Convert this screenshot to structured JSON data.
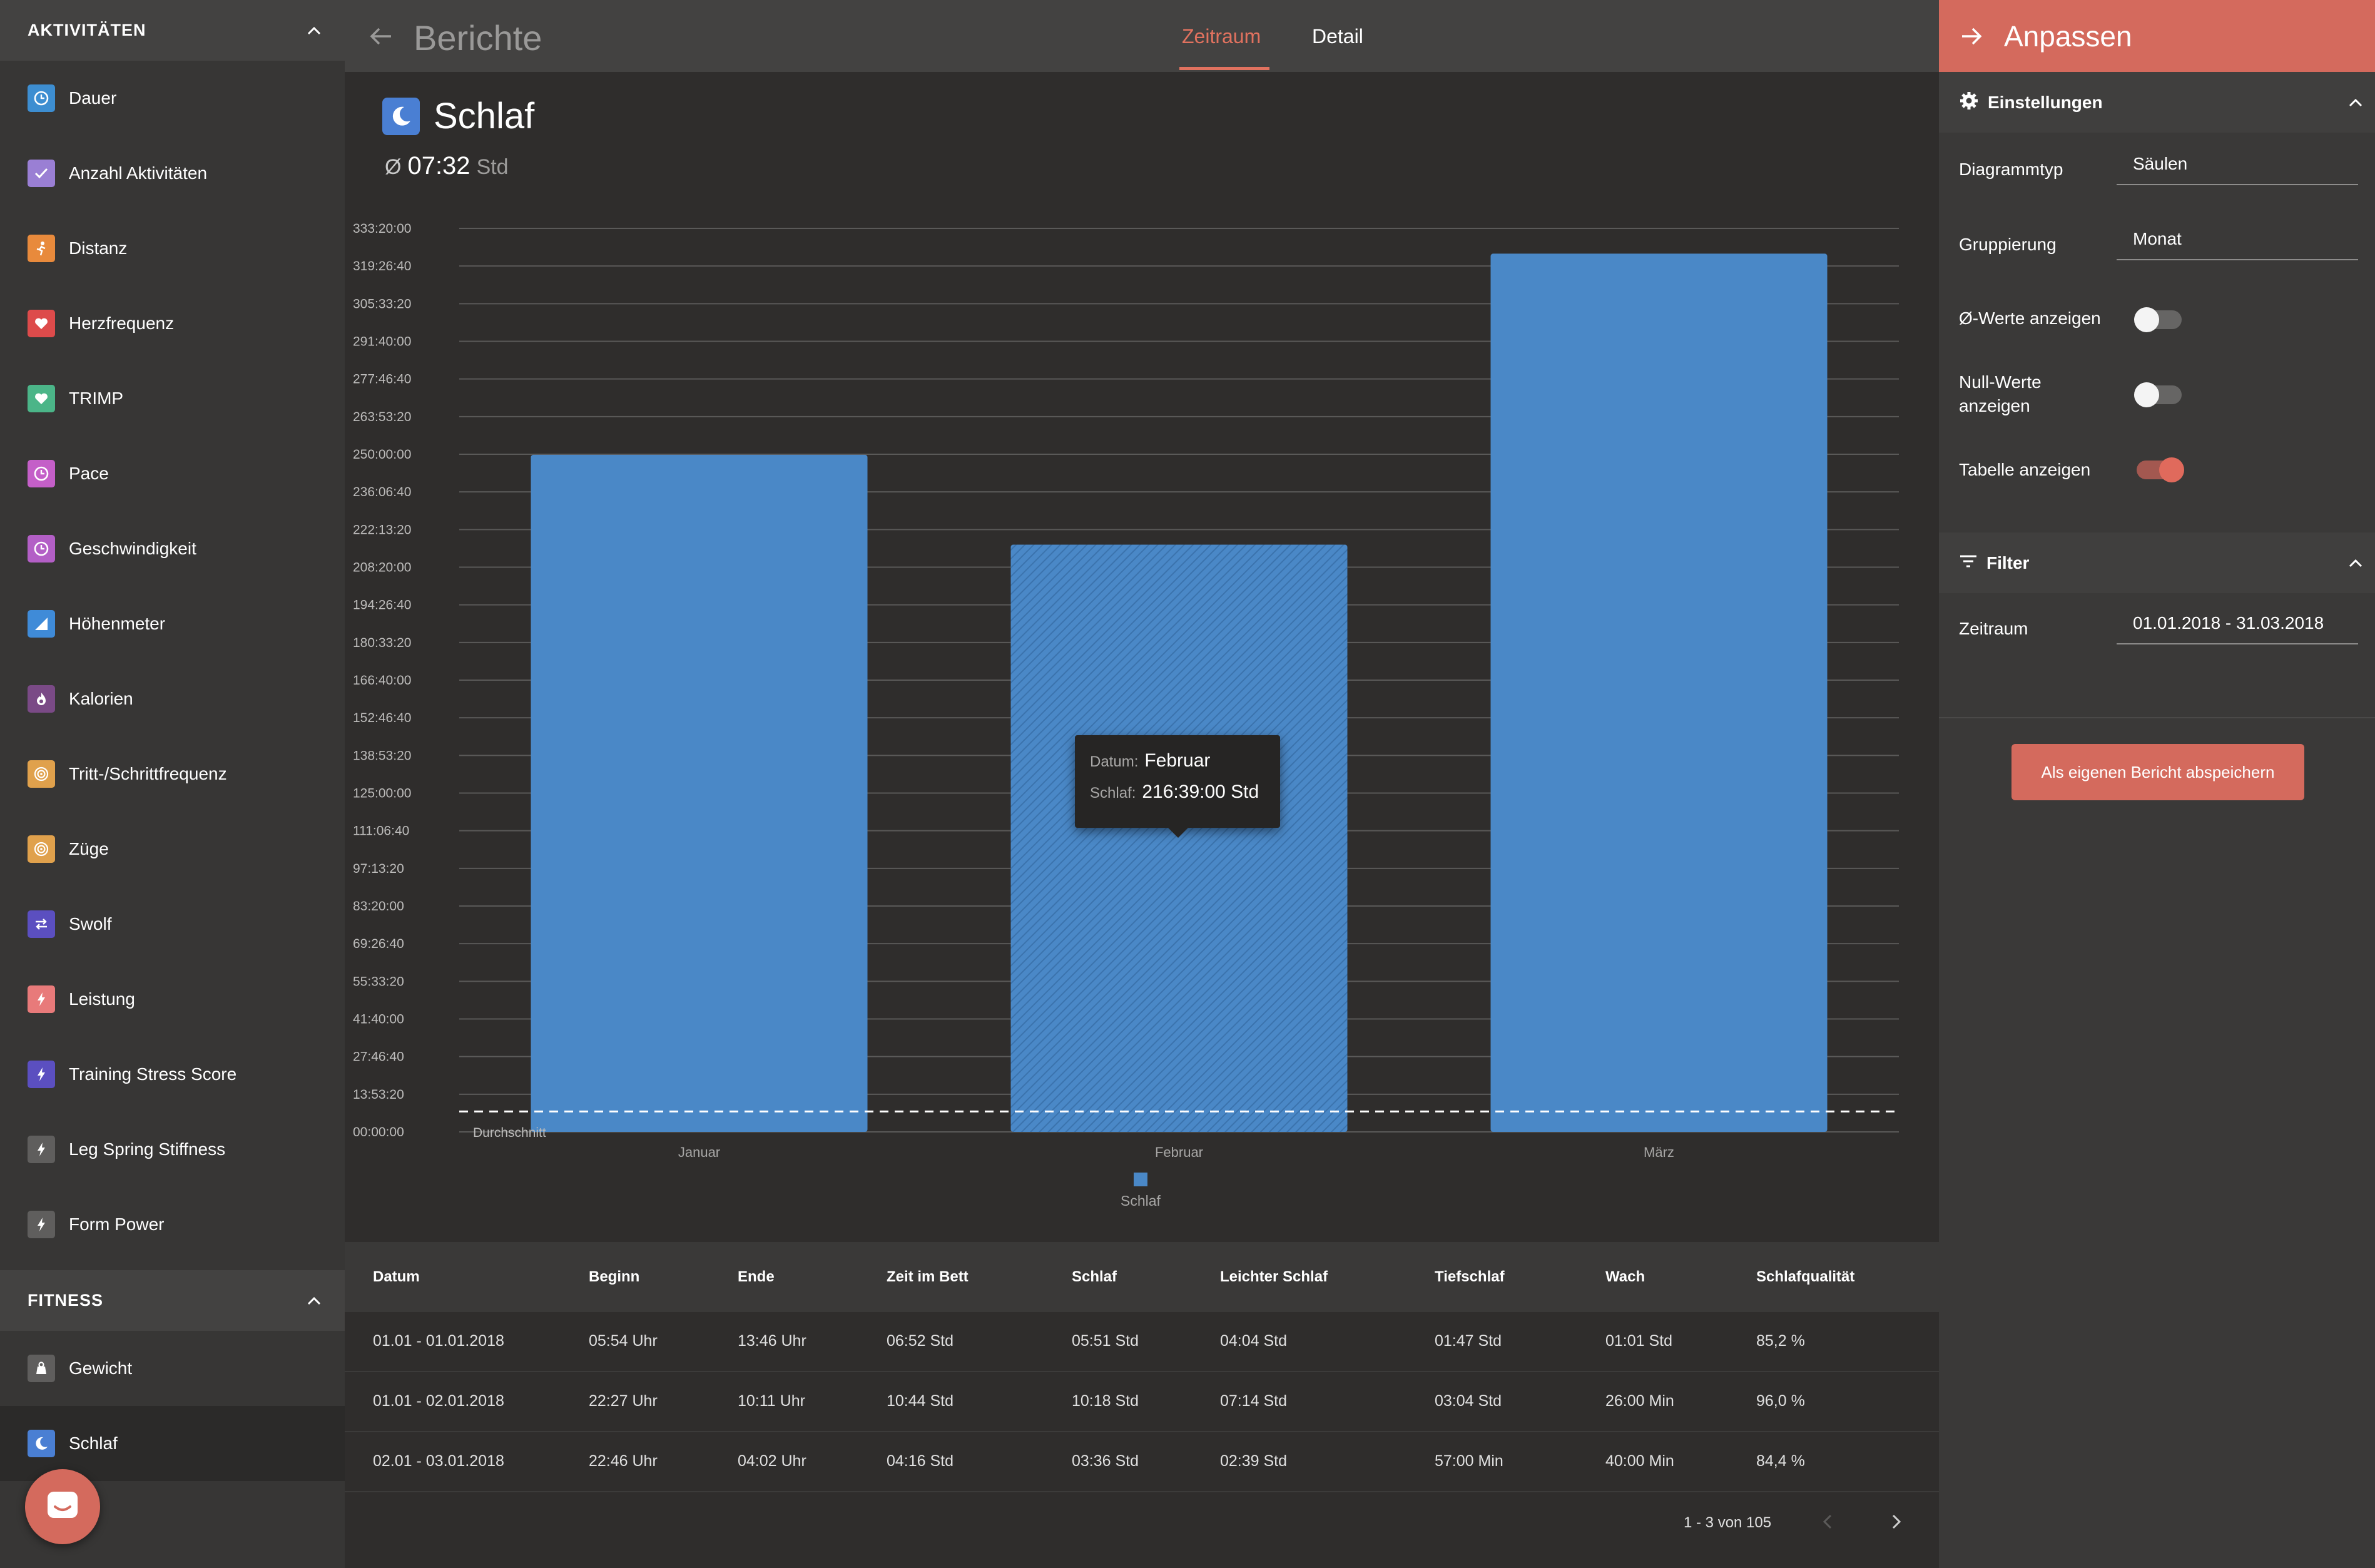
{
  "sidebar": {
    "activities_title": "AKTIVITÄTEN",
    "activities": [
      {
        "label": "Dauer",
        "icon": "clock-icon",
        "color": "#3d8ed1"
      },
      {
        "label": "Anzahl Aktivitäten",
        "icon": "checkmark-icon",
        "color": "#9a7fd4"
      },
      {
        "label": "Distanz",
        "icon": "runner-icon",
        "color": "#e88a3c"
      },
      {
        "label": "Herzfrequenz",
        "icon": "heart-icon",
        "color": "#dd4b4b"
      },
      {
        "label": "TRIMP",
        "icon": "heart-icon",
        "color": "#4bb588"
      },
      {
        "label": "Pace",
        "icon": "clock-icon",
        "color": "#c45fc8"
      },
      {
        "label": "Geschwindigkeit",
        "icon": "clock-icon",
        "color": "#b35fc6"
      },
      {
        "label": "Höhenmeter",
        "icon": "elevation-icon",
        "color": "#3f8bd8"
      },
      {
        "label": "Kalorien",
        "icon": "flame-icon",
        "color": "#7a4a86"
      },
      {
        "label": "Tritt-/Schrittfrequenz",
        "icon": "cadence-icon",
        "color": "#e0a14c"
      },
      {
        "label": "Züge",
        "icon": "cadence-icon",
        "color": "#e0a14c"
      },
      {
        "label": "Swolf",
        "icon": "swap-arrows-icon",
        "color": "#5b4fc0"
      },
      {
        "label": "Leistung",
        "icon": "lightning-icon",
        "color": "#e87a7a"
      },
      {
        "label": "Training Stress Score",
        "icon": "lightning-icon",
        "color": "#5b4fc0"
      },
      {
        "label": "Leg Spring Stiffness",
        "icon": "lightning-icon",
        "color": "#5f5e5d"
      },
      {
        "label": "Form Power",
        "icon": "lightning-icon",
        "color": "#5f5e5d"
      }
    ],
    "fitness_title": "FITNESS",
    "fitness": [
      {
        "label": "Gewicht",
        "icon": "scale-icon",
        "color": "#5f5e5d"
      },
      {
        "label": "Schlaf",
        "icon": "moon-icon",
        "color": "#4a7fd3"
      }
    ],
    "chat_icon": "chat-bubble-icon"
  },
  "topbar": {
    "title": "Berichte",
    "tabs": [
      "Zeitraum",
      "Detail"
    ],
    "active_tab": "Zeitraum"
  },
  "report": {
    "title": "Schlaf",
    "avg_symbol": "Ø",
    "avg_value": "07:32",
    "avg_unit": "Std",
    "average_line_label": "Durchschnitt"
  },
  "chart_data": {
    "type": "bar",
    "title": "Schlaf",
    "categories": [
      "Januar",
      "Februar",
      "März"
    ],
    "series": [
      {
        "name": "Schlaf",
        "values_hours": [
          249.8,
          216.65,
          324.0
        ],
        "color": "#4a88c7"
      }
    ],
    "y_tick_labels": [
      "00:00:00",
      "13:53:20",
      "27:46:40",
      "41:40:00",
      "55:33:20",
      "69:26:40",
      "83:20:00",
      "97:13:20",
      "111:06:40",
      "125:00:00",
      "138:53:20",
      "152:46:40",
      "166:40:00",
      "180:33:20",
      "194:26:40",
      "208:20:00",
      "222:13:20",
      "236:06:40",
      "250:00:00",
      "263:53:20",
      "277:46:40",
      "291:40:00",
      "305:33:20",
      "319:26:40",
      "333:20:00"
    ],
    "ylim_hours": [
      0,
      333.333
    ],
    "average_hours": 7.533,
    "highlighted_category": "Februar",
    "legend_position": "bottom-center",
    "grid": true
  },
  "tooltip": {
    "date_key": "Datum:",
    "date_value": "Februar",
    "sleep_key": "Schlaf:",
    "sleep_value": "216:39:00 Std"
  },
  "table": {
    "columns": [
      "Datum",
      "Beginn",
      "Ende",
      "Zeit im Bett",
      "Schlaf",
      "Leichter Schlaf",
      "Tiefschlaf",
      "Wach",
      "Schlafqualität"
    ],
    "rows": [
      [
        "01.01 - 01.01.2018",
        "05:54 Uhr",
        "13:46 Uhr",
        "06:52 Std",
        "05:51 Std",
        "04:04 Std",
        "01:47 Std",
        "01:01 Std",
        "85,2 %"
      ],
      [
        "01.01 - 02.01.2018",
        "22:27 Uhr",
        "10:11 Uhr",
        "10:44 Std",
        "10:18 Std",
        "07:14 Std",
        "03:04 Std",
        "26:00 Min",
        "96,0 %"
      ],
      [
        "02.01 - 03.01.2018",
        "22:46 Uhr",
        "04:02 Uhr",
        "04:16 Std",
        "03:36 Std",
        "02:39 Std",
        "57:00 Min",
        "40:00 Min",
        "84,4 %"
      ]
    ],
    "pagination": "1 - 3 von 105"
  },
  "panel": {
    "title": "Anpassen",
    "settings_title": "Einstellungen",
    "diagram_type_label": "Diagrammtyp",
    "diagram_type_value": "Säulen",
    "grouping_label": "Gruppierung",
    "grouping_value": "Monat",
    "show_avg_label": "Ø-Werte anzeigen",
    "show_avg": false,
    "show_null_label": "Null-Werte anzeigen",
    "show_null": false,
    "show_table_label": "Tabelle anzeigen",
    "show_table": true,
    "filter_title": "Filter",
    "period_label": "Zeitraum",
    "period_value": "01.01.2018 - 31.03.2018",
    "save_button": "Als eigenen Bericht abspeichern"
  }
}
